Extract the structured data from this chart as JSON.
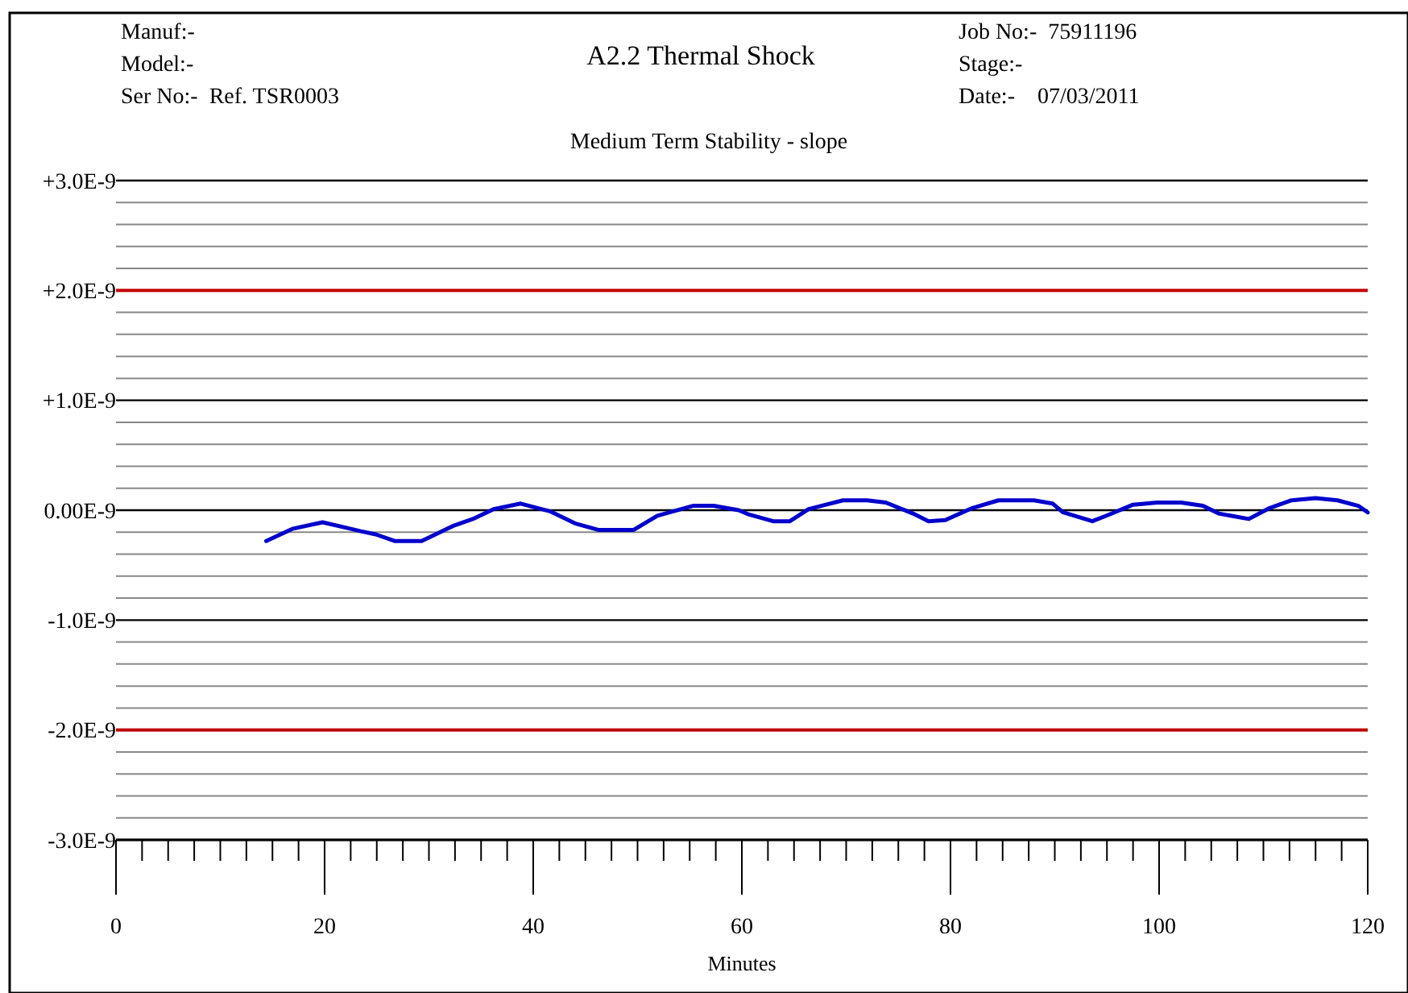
{
  "chart_data": {
    "type": "line",
    "title": "A2.2 Thermal Shock",
    "subtitle": "Medium Term Stability - slope",
    "xlabel": "Minutes",
    "annotations": [
      "Manuf:-",
      "Model:-",
      "Ser No:-  Ref. TSR0003",
      "Job No:-  75911196",
      "Stage:-",
      "Date:-    07/03/2011"
    ],
    "xlim": [
      0,
      120
    ],
    "xticks": [
      0,
      {
        "value": 2.5,
        "label": null
      },
      {
        "value": 5,
        "label": null
      },
      {
        "value": 7.5,
        "label": null
      },
      {
        "value": 10,
        "label": null
      },
      {
        "value": 12.5,
        "label": null
      },
      {
        "value": 15,
        "label": null
      },
      {
        "value": 17.5,
        "label": null
      },
      20,
      {
        "value": 22.5,
        "label": null
      },
      {
        "value": 25,
        "label": null
      },
      {
        "value": 27.5,
        "label": null
      },
      {
        "value": 30,
        "label": null
      },
      {
        "value": 32.5,
        "label": null
      },
      {
        "value": 35,
        "label": null
      },
      {
        "value": 37.5,
        "label": null
      },
      40,
      {
        "value": 42.5,
        "label": null
      },
      {
        "value": 45,
        "label": null
      },
      {
        "value": 47.5,
        "label": null
      },
      {
        "value": 50,
        "label": null
      },
      {
        "value": 52.5,
        "label": null
      },
      {
        "value": 55,
        "label": null
      },
      {
        "value": 57.5,
        "label": null
      },
      60,
      {
        "value": 62.5,
        "label": null
      },
      {
        "value": 65,
        "label": null
      },
      {
        "value": 67.5,
        "label": null
      },
      {
        "value": 70,
        "label": null
      },
      {
        "value": 72.5,
        "label": null
      },
      {
        "value": 75,
        "label": null
      },
      {
        "value": 77.5,
        "label": null
      },
      80,
      {
        "value": 82.5,
        "label": null
      },
      {
        "value": 85,
        "label": null
      },
      {
        "value": 87.5,
        "label": null
      },
      {
        "value": 90,
        "label": null
      },
      {
        "value": 92.5,
        "label": null
      },
      {
        "value": 95,
        "label": null
      },
      {
        "value": 97.5,
        "label": null
      },
      100,
      {
        "value": 102.5,
        "label": null
      },
      {
        "value": 105,
        "label": null
      },
      {
        "value": 107.5,
        "label": null
      },
      {
        "value": 110,
        "label": null
      },
      {
        "value": 112.5,
        "label": null
      },
      {
        "value": 115,
        "label": null
      },
      {
        "value": 117.5,
        "label": null
      },
      120
    ],
    "ylim": [
      -3e-09,
      3e-09
    ],
    "yticks": [
      {
        "value": -3e-09,
        "label": "-3.0E-9"
      },
      {
        "value": -2.8e-09,
        "label": null
      },
      {
        "value": -2.6e-09,
        "label": null
      },
      {
        "value": -2.4e-09,
        "label": null
      },
      {
        "value": -2.2e-09,
        "label": null
      },
      {
        "value": -2e-09,
        "label": "-2.0E-9"
      },
      {
        "value": -1.8e-09,
        "label": null
      },
      {
        "value": -1.6e-09,
        "label": null
      },
      {
        "value": -1.4e-09,
        "label": null
      },
      {
        "value": -1.2e-09,
        "label": null
      },
      {
        "value": -1e-09,
        "label": "-1.0E-9"
      },
      {
        "value": -8e-10,
        "label": null
      },
      {
        "value": -6e-10,
        "label": null
      },
      {
        "value": -4e-10,
        "label": null
      },
      {
        "value": -2e-10,
        "label": null
      },
      {
        "value": 0,
        "label": "0.00E-9"
      },
      {
        "value": 2e-10,
        "label": null
      },
      {
        "value": 4e-10,
        "label": null
      },
      {
        "value": 6e-10,
        "label": null
      },
      {
        "value": 8e-10,
        "label": null
      },
      {
        "value": 1e-09,
        "label": "+1.0E-9"
      },
      {
        "value": 1.2e-09,
        "label": null
      },
      {
        "value": 1.4e-09,
        "label": null
      },
      {
        "value": 1.6e-09,
        "label": null
      },
      {
        "value": 1.8e-09,
        "label": null
      },
      {
        "value": 2e-09,
        "label": "+2.0E-9"
      },
      {
        "value": 2.2e-09,
        "label": null
      },
      {
        "value": 2.4e-09,
        "label": null
      },
      {
        "value": 2.6e-09,
        "label": null
      },
      {
        "value": 2.8e-09,
        "label": null
      },
      {
        "value": 3e-09,
        "label": "+3.0E-9"
      }
    ],
    "grid": "y",
    "ref_lines": [
      {
        "axis": "y",
        "value": 2e-09,
        "color": "#c00000"
      },
      {
        "axis": "y",
        "value": -2e-09,
        "color": "#c00000"
      }
    ],
    "series": [
      {
        "color": "#0000cc",
        "x": [
          14.4,
          16.9,
          19.8,
          22.1,
          23.4,
          24.9,
          26.7,
          29.3,
          32.4,
          34.2,
          36.2,
          38.8,
          41.6,
          44.0,
          46.3,
          49.6,
          51.9,
          55.3,
          57.3,
          59.7,
          60.7,
          63.0,
          64.6,
          66.4,
          69.7,
          72.0,
          73.8,
          76.4,
          77.9,
          79.5,
          82.1,
          84.6,
          88.0,
          89.8,
          90.8,
          93.6,
          95.2,
          97.5,
          99.8,
          102.1,
          104.2,
          105.7,
          108.6,
          110.6,
          112.7,
          115.0,
          117.1,
          119.1,
          120
        ],
        "values": [
          -2.8e-10,
          -1.7e-10,
          -1.1e-10,
          -1.6e-10,
          -1.9e-10,
          -2.2e-10,
          -2.8e-10,
          -2.8e-10,
          -1.4e-10,
          -8e-11,
          1e-11,
          6e-11,
          -1e-11,
          -1.2e-10,
          -1.8e-10,
          -1.8e-10,
          -5e-11,
          4e-11,
          4e-11,
          0,
          -4e-11,
          -1e-10,
          -1e-10,
          1e-11,
          9e-11,
          9e-11,
          7e-11,
          -3e-11,
          -1e-10,
          -9e-11,
          2e-11,
          9e-11,
          9e-11,
          6e-11,
          -2e-11,
          -1e-10,
          -4e-11,
          5e-11,
          7e-11,
          7e-11,
          4e-11,
          -3e-11,
          -8e-11,
          2e-11,
          9e-11,
          1.1e-10,
          9e-11,
          4e-11,
          -2e-11
        ]
      }
    ]
  }
}
